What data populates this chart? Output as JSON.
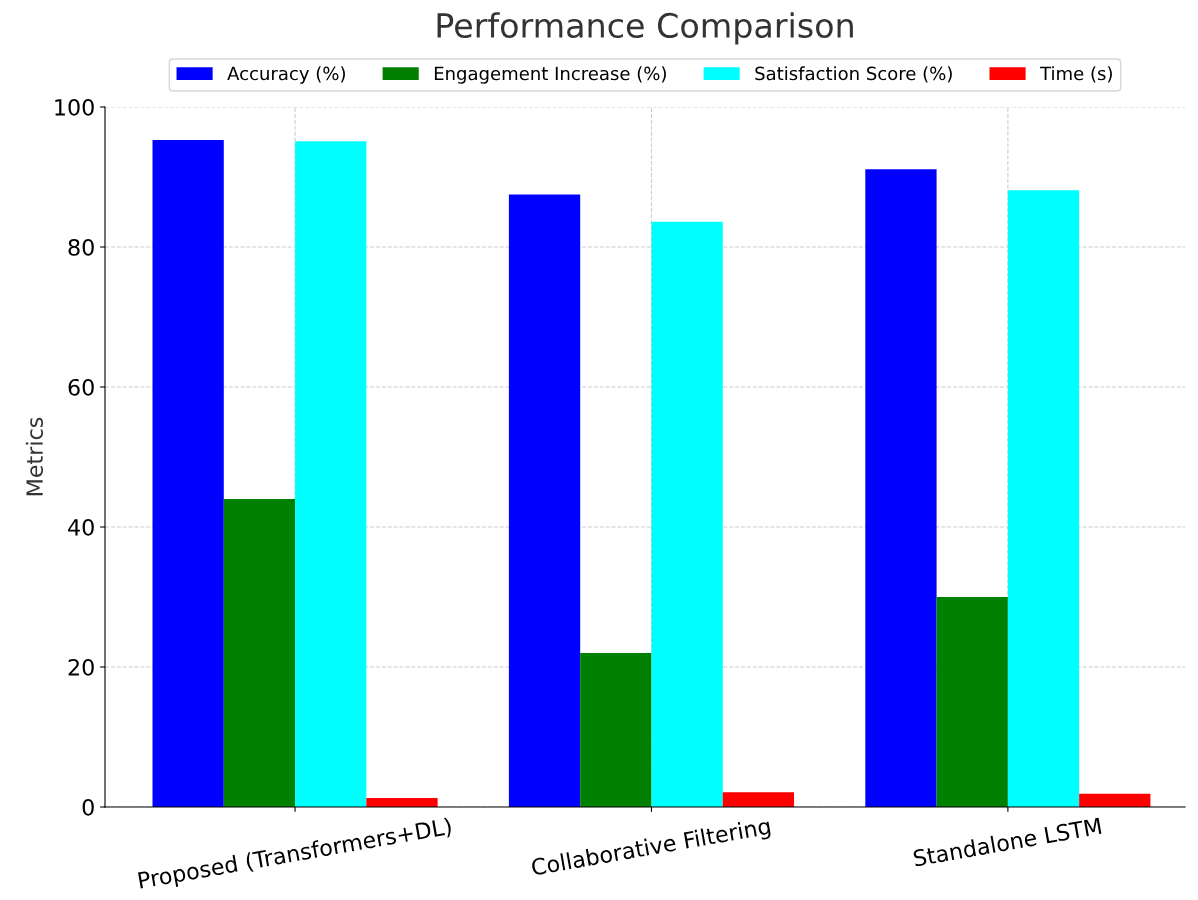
{
  "chart_data": {
    "type": "bar",
    "title": "Performance Comparison",
    "ylabel": "Metrics",
    "categories": [
      "Proposed (Transformers+DL)",
      "Collaborative Filtering",
      "Standalone LSTM"
    ],
    "series": [
      {
        "name": "Accuracy (%)",
        "color": "#0000ff",
        "values": [
          95.3,
          87.5,
          91.1
        ]
      },
      {
        "name": "Engagement Increase (%)",
        "color": "#008000",
        "values": [
          44,
          22,
          30
        ]
      },
      {
        "name": "Satisfaction Score (%)",
        "color": "#00ffff",
        "values": [
          95.1,
          83.6,
          88.1
        ]
      },
      {
        "name": "Time (s)",
        "color": "#ff0000",
        "values": [
          1.3,
          2.1,
          1.9
        ]
      }
    ],
    "ylim": [
      0,
      100
    ],
    "yticks": [
      0,
      20,
      40,
      60,
      80,
      100
    ],
    "grid": true,
    "legend": "top",
    "line_style": "dashed"
  }
}
